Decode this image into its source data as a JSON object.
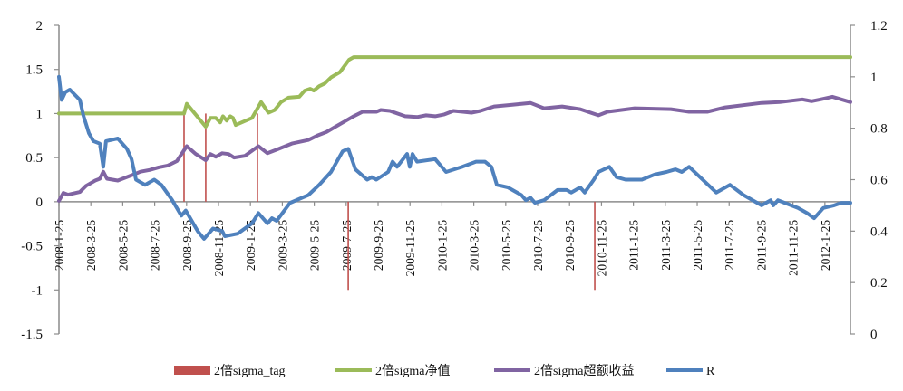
{
  "chart_data": {
    "type": "line",
    "title": "",
    "x_unit": "months since 2008-1-25",
    "x_range": [
      0,
      49.6
    ],
    "x_tick_labels": [
      "2008-1-25",
      "2008-3-25",
      "2008-5-25",
      "2008-7-25",
      "2008-9-25",
      "2008-11-25",
      "2009-1-25",
      "2009-3-25",
      "2009-5-25",
      "2009-7-25",
      "2009-9-25",
      "2009-11-25",
      "2010-1-25",
      "2010-3-25",
      "2010-5-25",
      "2010-7-25",
      "2010-9-25",
      "2010-11-25",
      "2011-1-25",
      "2011-3-25",
      "2011-5-25",
      "2011-7-25",
      "2011-9-25",
      "2011-11-25",
      "2012-1-25"
    ],
    "left_axis": {
      "range": [
        -1.5,
        2
      ],
      "ticks": [
        2,
        1.5,
        1,
        0.5,
        0,
        -0.5,
        -1,
        -1.5
      ],
      "tick_labels": [
        "2",
        "1.5",
        "1",
        "0.5",
        "0",
        "-0.5",
        "-1",
        "-1.5"
      ]
    },
    "right_axis": {
      "range": [
        0,
        1.2
      ],
      "ticks": [
        1.2,
        1,
        0.8,
        0.6,
        0.4,
        0.2,
        0
      ],
      "tick_labels": [
        "1.2",
        "1",
        "0.8",
        "0.6",
        "0.4",
        "0.2",
        "0"
      ]
    },
    "legend_position": "bottom",
    "series": [
      {
        "name": "2倍sigma_tag",
        "kind": "bar",
        "axis": "left",
        "color": "#C0504D",
        "points": [
          [
            7.84,
            1
          ],
          [
            9.2,
            1
          ],
          [
            12.44,
            1
          ],
          [
            18.13,
            -1
          ],
          [
            33.58,
            -1
          ]
        ]
      },
      {
        "name": "2倍sigma净值",
        "kind": "line",
        "axis": "left",
        "color": "#9BBB59",
        "points": [
          [
            0,
            1
          ],
          [
            7.84,
            1
          ],
          [
            8.01,
            1.11
          ],
          [
            9.2,
            0.85
          ],
          [
            9.49,
            0.95
          ],
          [
            9.83,
            0.95
          ],
          [
            10.11,
            0.9
          ],
          [
            10.28,
            0.97
          ],
          [
            10.51,
            0.92
          ],
          [
            10.74,
            0.97
          ],
          [
            10.91,
            0.95
          ],
          [
            11.08,
            0.87
          ],
          [
            12.1,
            0.95
          ],
          [
            12.67,
            1.13
          ],
          [
            13.13,
            1.01
          ],
          [
            13.52,
            1.04
          ],
          [
            13.92,
            1.13
          ],
          [
            14.38,
            1.18
          ],
          [
            15.06,
            1.19
          ],
          [
            15.4,
            1.26
          ],
          [
            15.74,
            1.28
          ],
          [
            15.97,
            1.26
          ],
          [
            16.31,
            1.31
          ],
          [
            16.65,
            1.34
          ],
          [
            17.05,
            1.41
          ],
          [
            17.61,
            1.47
          ],
          [
            18.18,
            1.61
          ],
          [
            18.47,
            1.64
          ],
          [
            49.6,
            1.64
          ]
        ]
      },
      {
        "name": "2倍sigma超额收益",
        "kind": "line",
        "axis": "left",
        "color": "#8064A2",
        "points": [
          [
            0,
            0.01
          ],
          [
            0.28,
            0.1
          ],
          [
            0.57,
            0.08
          ],
          [
            1.31,
            0.11
          ],
          [
            1.7,
            0.18
          ],
          [
            2.27,
            0.24
          ],
          [
            2.56,
            0.26
          ],
          [
            2.78,
            0.34
          ],
          [
            3.01,
            0.26
          ],
          [
            3.69,
            0.24
          ],
          [
            4.26,
            0.28
          ],
          [
            4.83,
            0.32
          ],
          [
            5.11,
            0.34
          ],
          [
            5.68,
            0.36
          ],
          [
            6.25,
            0.39
          ],
          [
            6.82,
            0.41
          ],
          [
            7.39,
            0.46
          ],
          [
            8.01,
            0.63
          ],
          [
            8.58,
            0.54
          ],
          [
            9.2,
            0.47
          ],
          [
            9.49,
            0.54
          ],
          [
            9.83,
            0.51
          ],
          [
            10.23,
            0.55
          ],
          [
            10.63,
            0.54
          ],
          [
            10.97,
            0.5
          ],
          [
            11.65,
            0.52
          ],
          [
            12.5,
            0.63
          ],
          [
            13.07,
            0.55
          ],
          [
            13.64,
            0.59
          ],
          [
            14.6,
            0.66
          ],
          [
            15.63,
            0.7
          ],
          [
            16.19,
            0.75
          ],
          [
            16.76,
            0.79
          ],
          [
            17.33,
            0.85
          ],
          [
            17.9,
            0.91
          ],
          [
            18.47,
            0.97
          ],
          [
            19.03,
            1.02
          ],
          [
            19.89,
            1.02
          ],
          [
            20.17,
            1.04
          ],
          [
            20.74,
            1.03
          ],
          [
            21.7,
            0.97
          ],
          [
            22.44,
            0.96
          ],
          [
            23.01,
            0.98
          ],
          [
            23.58,
            0.97
          ],
          [
            24.15,
            0.99
          ],
          [
            24.72,
            1.03
          ],
          [
            25.85,
            1.01
          ],
          [
            26.42,
            1.03
          ],
          [
            27.27,
            1.08
          ],
          [
            28.41,
            1.1
          ],
          [
            29.55,
            1.12
          ],
          [
            30.4,
            1.06
          ],
          [
            31.53,
            1.08
          ],
          [
            32.67,
            1.05
          ],
          [
            33.81,
            0.98
          ],
          [
            34.38,
            1.02
          ],
          [
            36.08,
            1.06
          ],
          [
            38.35,
            1.05
          ],
          [
            39.49,
            1.02
          ],
          [
            40.63,
            1.02
          ],
          [
            41.76,
            1.07
          ],
          [
            44.03,
            1.12
          ],
          [
            45.17,
            1.13
          ],
          [
            46.59,
            1.16
          ],
          [
            47.16,
            1.14
          ],
          [
            47.73,
            1.16
          ],
          [
            48.47,
            1.19
          ],
          [
            48.86,
            1.17
          ],
          [
            49.6,
            1.13
          ]
        ]
      },
      {
        "name": "R",
        "kind": "line",
        "axis": "right",
        "color": "#4F81BD",
        "points": [
          [
            0,
            1
          ],
          [
            0.17,
            0.91
          ],
          [
            0.4,
            0.94
          ],
          [
            0.68,
            0.95
          ],
          [
            1.31,
            0.91
          ],
          [
            1.53,
            0.85
          ],
          [
            1.88,
            0.78
          ],
          [
            2.16,
            0.75
          ],
          [
            2.56,
            0.74
          ],
          [
            2.78,
            0.65
          ],
          [
            2.95,
            0.75
          ],
          [
            3.69,
            0.76
          ],
          [
            4.26,
            0.72
          ],
          [
            4.55,
            0.68
          ],
          [
            4.83,
            0.6
          ],
          [
            5.4,
            0.58
          ],
          [
            5.97,
            0.6
          ],
          [
            6.42,
            0.58
          ],
          [
            7.1,
            0.52
          ],
          [
            7.67,
            0.46
          ],
          [
            7.95,
            0.48
          ],
          [
            8.69,
            0.4
          ],
          [
            9.09,
            0.37
          ],
          [
            9.66,
            0.41
          ],
          [
            10.23,
            0.4
          ],
          [
            10.4,
            0.38
          ],
          [
            11.19,
            0.39
          ],
          [
            12.1,
            0.43
          ],
          [
            12.5,
            0.47
          ],
          [
            13.07,
            0.43
          ],
          [
            13.35,
            0.45
          ],
          [
            13.64,
            0.44
          ],
          [
            14.49,
            0.51
          ],
          [
            15.63,
            0.54
          ],
          [
            16.31,
            0.58
          ],
          [
            17.05,
            0.63
          ],
          [
            17.78,
            0.71
          ],
          [
            18.13,
            0.72
          ],
          [
            18.58,
            0.64
          ],
          [
            19.32,
            0.6
          ],
          [
            19.6,
            0.61
          ],
          [
            19.89,
            0.6
          ],
          [
            20.63,
            0.63
          ],
          [
            20.91,
            0.67
          ],
          [
            21.19,
            0.65
          ],
          [
            21.82,
            0.7
          ],
          [
            21.99,
            0.65
          ],
          [
            22.16,
            0.7
          ],
          [
            22.44,
            0.67
          ],
          [
            23.58,
            0.68
          ],
          [
            24.26,
            0.63
          ],
          [
            25.28,
            0.65
          ],
          [
            26.14,
            0.67
          ],
          [
            26.7,
            0.67
          ],
          [
            27.1,
            0.65
          ],
          [
            27.44,
            0.58
          ],
          [
            28.13,
            0.57
          ],
          [
            28.98,
            0.54
          ],
          [
            29.26,
            0.52
          ],
          [
            29.55,
            0.53
          ],
          [
            29.83,
            0.51
          ],
          [
            30.4,
            0.52
          ],
          [
            31.25,
            0.56
          ],
          [
            31.82,
            0.56
          ],
          [
            32.1,
            0.55
          ],
          [
            32.67,
            0.57
          ],
          [
            32.95,
            0.55
          ],
          [
            33.52,
            0.6
          ],
          [
            33.81,
            0.63
          ],
          [
            34.49,
            0.65
          ],
          [
            34.94,
            0.61
          ],
          [
            35.51,
            0.6
          ],
          [
            36.53,
            0.6
          ],
          [
            37.33,
            0.62
          ],
          [
            38.07,
            0.63
          ],
          [
            38.64,
            0.64
          ],
          [
            39.03,
            0.63
          ],
          [
            39.49,
            0.65
          ],
          [
            40.51,
            0.59
          ],
          [
            41.19,
            0.55
          ],
          [
            42.05,
            0.58
          ],
          [
            42.9,
            0.54
          ],
          [
            44.03,
            0.5
          ],
          [
            44.6,
            0.52
          ],
          [
            44.77,
            0.5
          ],
          [
            45.06,
            0.52
          ],
          [
            46.31,
            0.49
          ],
          [
            46.88,
            0.47
          ],
          [
            47.33,
            0.45
          ],
          [
            47.9,
            0.49
          ],
          [
            48.58,
            0.5
          ],
          [
            49.03,
            0.51
          ],
          [
            49.6,
            0.51
          ]
        ]
      }
    ]
  }
}
